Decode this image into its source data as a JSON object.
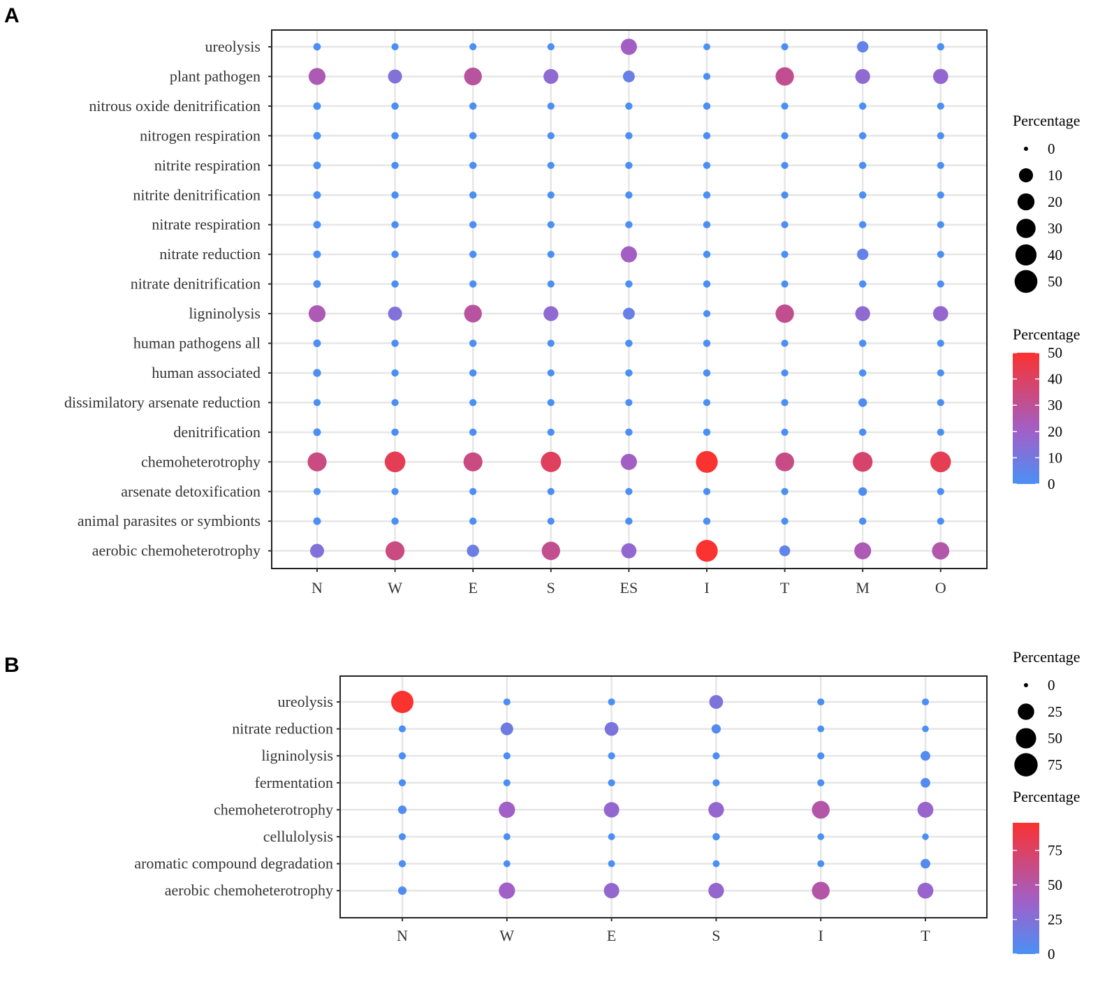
{
  "colors": {
    "low": "#4a90f5",
    "mid": "#a060c8",
    "high": "#fa3230",
    "dot": "#000000",
    "grid": "#e6e6e6"
  },
  "chart_data": [
    {
      "panel": "A",
      "type": "scatter",
      "subtype": "bubble",
      "x": [
        "N",
        "W",
        "E",
        "S",
        "ES",
        "I",
        "T",
        "M",
        "O"
      ],
      "y": [
        "ureolysis",
        "plant pathogen",
        "nitrous oxide denitrification",
        "nitrogen respiration",
        "nitrite respiration",
        "nitrite denitrification",
        "nitrate respiration",
        "nitrate reduction",
        "nitrate denitrification",
        "ligninolysis",
        "human pathogens all",
        "human associated",
        "dissimilatory arsenate reduction",
        "denitrification",
        "chemoheterotrophy",
        "arsenate detoxification",
        "animal parasites or symbionts",
        "aerobic chemoheterotrophy"
      ],
      "values": [
        [
          0.5,
          0.3,
          0.3,
          0.3,
          21,
          0.2,
          0.3,
          6,
          0.4
        ],
        [
          24,
          13,
          28,
          16,
          7,
          0.3,
          31,
          16,
          17
        ],
        [
          0.6,
          0.4,
          0.4,
          0.3,
          0.4,
          0.4,
          0.3,
          0.4,
          0.3
        ],
        [
          0.6,
          0.4,
          0.4,
          0.3,
          0.4,
          0.4,
          0.3,
          0.4,
          0.3
        ],
        [
          0.6,
          0.4,
          0.4,
          0.3,
          0.4,
          0.4,
          0.3,
          0.4,
          0.3
        ],
        [
          0.6,
          0.4,
          0.4,
          0.3,
          0.4,
          0.4,
          0.3,
          0.4,
          0.3
        ],
        [
          0.6,
          0.4,
          0.4,
          0.3,
          0.4,
          0.4,
          0.3,
          0.4,
          0.3
        ],
        [
          0.6,
          0.4,
          0.4,
          0.3,
          21,
          0.4,
          0.3,
          6,
          0.3
        ],
        [
          0.6,
          0.4,
          0.4,
          0.3,
          0.4,
          0.4,
          0.3,
          0.4,
          0.3
        ],
        [
          24,
          13,
          28,
          16,
          7,
          0.3,
          31,
          16,
          17
        ],
        [
          0.6,
          0.4,
          0.4,
          0.3,
          0.4,
          0.4,
          0.3,
          0.4,
          0.3
        ],
        [
          0.8,
          0.4,
          0.4,
          0.3,
          0.4,
          0.4,
          0.3,
          0.4,
          0.3
        ],
        [
          0.3,
          0.3,
          0.3,
          0.3,
          0.3,
          0.3,
          0.3,
          1.5,
          0.3
        ],
        [
          0.6,
          0.4,
          0.4,
          0.3,
          0.4,
          0.4,
          0.3,
          0.4,
          0.3
        ],
        [
          34,
          43,
          34,
          41,
          21,
          50,
          33,
          38,
          43
        ],
        [
          0.3,
          0.3,
          0.3,
          0.3,
          0.3,
          0.3,
          0.3,
          1.5,
          0.3
        ],
        [
          0.6,
          0.4,
          0.4,
          0.3,
          0.4,
          0.4,
          0.3,
          0.4,
          0.3
        ],
        [
          13,
          34,
          8,
          31,
          17,
          50,
          5,
          24,
          26
        ]
      ],
      "size_legend": {
        "title": "Percentage",
        "breaks": [
          "0",
          "10",
          "20",
          "30",
          "40",
          "50"
        ],
        "values": [
          0,
          10,
          20,
          30,
          40,
          50
        ]
      },
      "color_legend": {
        "title": "Percentage",
        "breaks": [
          "50",
          "40",
          "30",
          "20",
          "10",
          "0"
        ],
        "values": [
          50,
          40,
          30,
          20,
          10,
          0
        ],
        "range": [
          0,
          50
        ]
      }
    },
    {
      "panel": "B",
      "type": "scatter",
      "subtype": "bubble",
      "x": [
        "N",
        "W",
        "E",
        "S",
        "I",
        "T"
      ],
      "y": [
        "ureolysis",
        "nitrate reduction",
        "ligninolysis",
        "fermentation",
        "chemoheterotrophy",
        "cellulolysis",
        "aromatic compound degradation",
        "aerobic chemoheterotrophy"
      ],
      "values": [
        [
          95,
          0.5,
          0.5,
          22,
          0.5,
          0.5
        ],
        [
          0.5,
          16,
          22,
          4,
          0.3,
          0.2
        ],
        [
          0.6,
          0.5,
          0.5,
          0.5,
          0.5,
          5
        ],
        [
          0.6,
          0.5,
          0.5,
          0.5,
          0.5,
          5
        ],
        [
          2.5,
          38,
          32,
          33,
          50,
          35
        ],
        [
          0.5,
          0.4,
          0.4,
          0.8,
          0.3,
          0.2
        ],
        [
          0.6,
          0.4,
          0.4,
          0.4,
          0.4,
          5
        ],
        [
          2.5,
          38,
          32,
          33,
          50,
          35
        ]
      ],
      "size_legend": {
        "title": "Percentage",
        "breaks": [
          "0",
          "25",
          "50",
          "75"
        ],
        "values": [
          0,
          25,
          50,
          75
        ]
      },
      "color_legend": {
        "title": "Percentage",
        "breaks": [
          "75",
          "50",
          "25",
          "0"
        ],
        "values": [
          75,
          50,
          25,
          0
        ],
        "range": [
          0,
          95
        ]
      }
    }
  ]
}
